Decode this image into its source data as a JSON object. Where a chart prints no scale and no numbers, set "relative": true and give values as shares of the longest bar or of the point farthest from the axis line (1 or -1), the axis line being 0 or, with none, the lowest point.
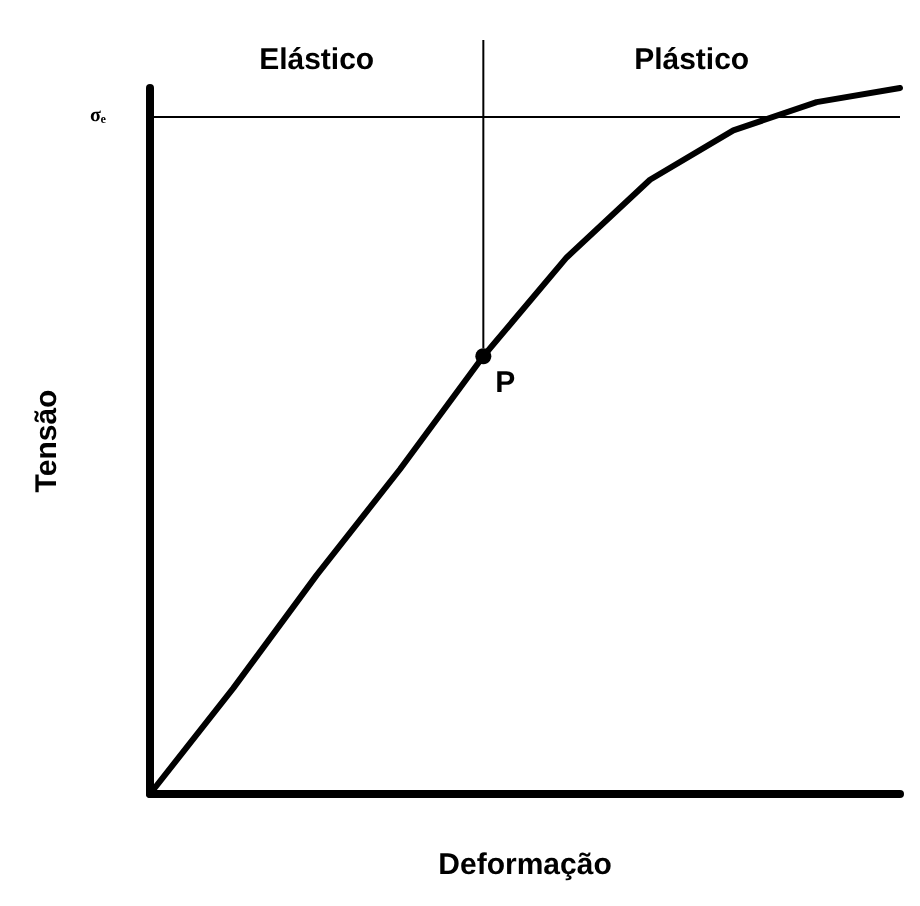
{
  "chart_data": {
    "type": "line",
    "relative": true,
    "xlabel": "Deformação",
    "ylabel": "Tensão",
    "categories": [
      null,
      null,
      null,
      null,
      null,
      null,
      null,
      null,
      null,
      null
    ],
    "series": [
      {
        "color": "#000000",
        "values": [
          0,
          0.15,
          0.31,
          0.46,
          0.62,
          0.76,
          0.87,
          0.94,
          0.98,
          1
        ]
      }
    ],
    "ref_lines": [
      {
        "axis": "y",
        "value": 0.96,
        "label": "σₑ",
        "color": "#000000"
      }
    ],
    "annotations": [
      "Elástico",
      "Plástico",
      "P"
    ],
    "marker": "none",
    "line_style": "solid",
    "grid": false
  }
}
